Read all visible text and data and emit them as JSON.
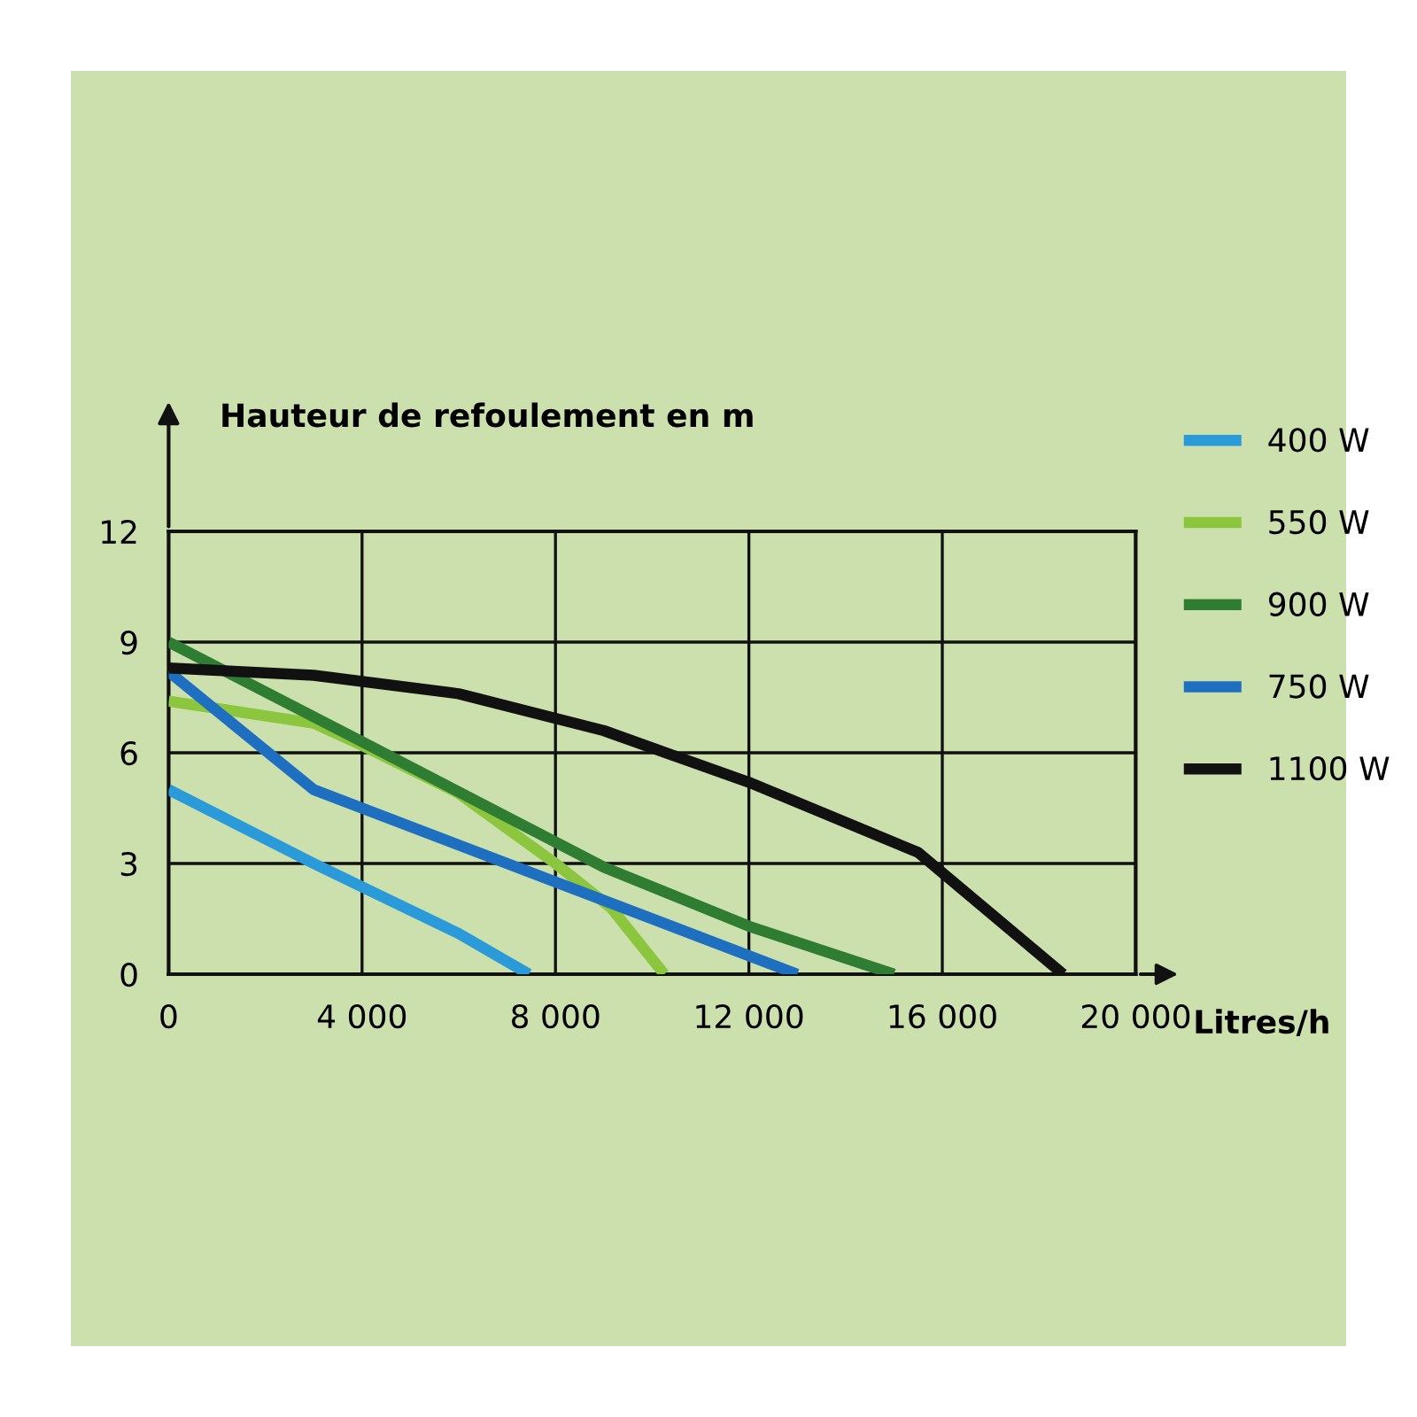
{
  "chart_data": {
    "type": "line",
    "ylabel": "Hauteur de refoulement en m",
    "xlabel": "Litres/h",
    "xlim": [
      0,
      20000
    ],
    "ylim": [
      0,
      12
    ],
    "xticks": [
      0,
      {
        "value": 4000,
        "label": "4 000"
      },
      {
        "value": 8000,
        "label": "8 000"
      },
      {
        "value": 12000,
        "label": "12 000"
      },
      {
        "value": 16000,
        "label": "16 000"
      },
      {
        "value": 20000,
        "label": "20 000"
      }
    ],
    "yticks": [
      0,
      3,
      6,
      9,
      12
    ],
    "grid": true,
    "legend": "right",
    "marker": "none",
    "line_style": "solid",
    "series": [
      {
        "name": "400 W",
        "color": "#2a9ad8",
        "x": [
          0,
          3000,
          6000,
          7450
        ],
        "values": [
          5.0,
          3.0,
          1.1,
          0
        ]
      },
      {
        "name": "550 W",
        "color": "#8cc63f",
        "x": [
          0,
          3000,
          4000,
          6000,
          8000,
          9150,
          10250
        ],
        "values": [
          7.4,
          6.8,
          6.2,
          4.9,
          3.0,
          1.8,
          0
        ]
      },
      {
        "name": "900 W",
        "color": "#2e7d32",
        "x": [
          0,
          4000,
          9000,
          12000,
          15000
        ],
        "values": [
          9.0,
          6.3,
          2.9,
          1.3,
          0
        ]
      },
      {
        "name": "750 W",
        "color": "#1f6fc0",
        "x": [
          0,
          3000,
          8000,
          13000
        ],
        "values": [
          8.2,
          5.0,
          2.5,
          0
        ]
      },
      {
        "name": "1100 W",
        "color": "#111111",
        "x": [
          0,
          3000,
          6000,
          9000,
          12000,
          15500,
          18500
        ],
        "values": [
          8.3,
          8.1,
          7.6,
          6.6,
          5.2,
          3.3,
          0
        ]
      }
    ]
  }
}
